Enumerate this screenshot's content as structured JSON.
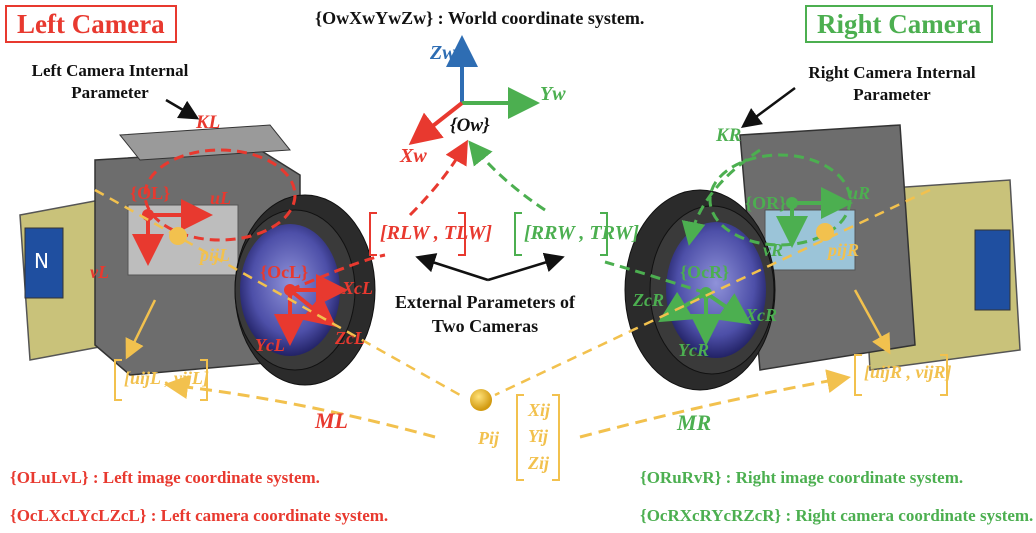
{
  "colors": {
    "red": "#e8392f",
    "green": "#4caf50",
    "blue": "#2e6db3",
    "yellow": "#f2c14e",
    "black": "#111111"
  },
  "titles": {
    "left": "Left Camera",
    "right": "Right Camera"
  },
  "world_caption": "{OwXwYwZw} : World coordinate system.",
  "internal": {
    "left": "Left Camera Internal Parameter",
    "right": "Right Camera Internal Parameter",
    "K_left": "KL",
    "K_right": "KR"
  },
  "world_axes": {
    "z": "Zw",
    "y": "Yw",
    "x": "Xw",
    "origin": "{Ow}"
  },
  "external": {
    "label": "External Parameters of Two Cameras",
    "left_param": "[RLW , TLW]",
    "right_param": "[RRW , TRW]"
  },
  "left_frame": {
    "image_origin": "{OL}",
    "u": "uL",
    "v": "vL",
    "point": "pijL",
    "cam_origin": "{OcL}",
    "xc": "XcL",
    "yc": "YcL",
    "zc": "ZcL",
    "pixel": "[uijL , vijL]"
  },
  "right_frame": {
    "image_origin": "{OR}",
    "u": "uR",
    "v": "vR",
    "point": "pijR",
    "cam_origin": "{OcR}",
    "xc": "XcR",
    "yc": "YcR",
    "zc": "ZcR",
    "pixel": "[uijR , vijR]"
  },
  "projection": {
    "ML": "ML",
    "MR": "MR",
    "point": "Pij",
    "vector": [
      "Xij",
      "Yij",
      "Zij"
    ]
  },
  "legend": [
    {
      "text": "{OLuLvL} : Left image coordinate system.",
      "color": "red"
    },
    {
      "text": "{OcLXcLYcLZcL} : Left camera coordinate system.",
      "color": "red"
    },
    {
      "text": "{ORuRvR} : Right image coordinate system.",
      "color": "green"
    },
    {
      "text": "{OcRXcRYcRZcR} : Right camera coordinate system.",
      "color": "green"
    }
  ]
}
